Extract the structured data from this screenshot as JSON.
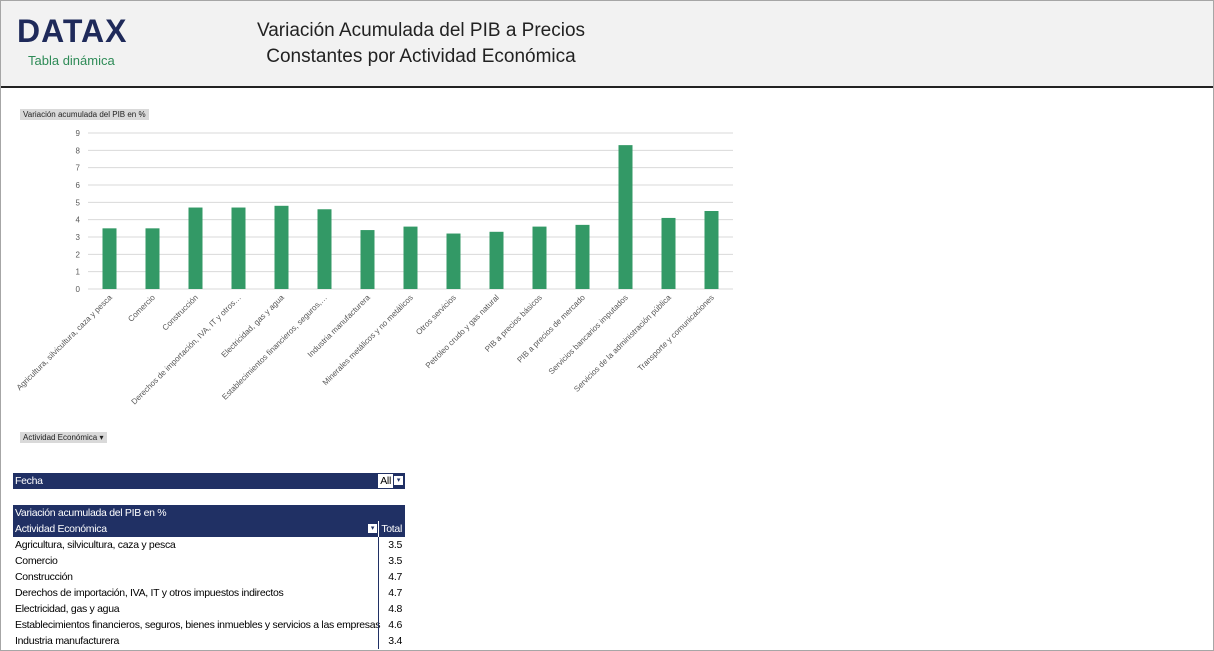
{
  "header": {
    "logo": "DATAX",
    "subtitle": "Tabla dinámica",
    "title_line1": "Variación Acumulada del PIB a Precios",
    "title_line2": "Constantes por Actividad Económica"
  },
  "chart_data": {
    "type": "bar",
    "value_button": "Variación acumulada del PIB en %",
    "axis_button": "Actividad Económica",
    "categories": [
      "Agricultura, silvicultura, caza y pesca",
      "Comercio",
      "Construcción",
      "Derechos de importación, IVA, IT y otros…",
      "Electricidad, gas y agua",
      "Establecimientos financieros, seguros,…",
      "Industria manufacturera",
      "Minerales metálicos y no metálicos",
      "Otros servicios",
      "Petróleo crudo y gas natural",
      "PIB a precios básicos",
      "PIB a precios de mercado",
      "Servicios bancarios imputados",
      "Servicios de la administración pública",
      "Transporte y comunicaciones"
    ],
    "values": [
      3.5,
      3.5,
      4.7,
      4.7,
      4.8,
      4.6,
      3.4,
      3.6,
      3.2,
      3.3,
      3.6,
      3.7,
      8.3,
      4.1,
      4.5
    ],
    "color": "#339966",
    "ylim": [
      0,
      9
    ],
    "yticks": [
      0,
      1,
      2,
      3,
      4,
      5,
      6,
      7,
      8,
      9
    ],
    "grid": true
  },
  "pivot": {
    "filter_label": "Fecha",
    "filter_value": "All",
    "measure": "Variación acumulada del PIB en %",
    "row_header": "Actividad Económica",
    "total_header": "Total",
    "rows": [
      [
        "Agricultura, silvicultura, caza y pesca",
        3.5
      ],
      [
        "Comercio",
        3.5
      ],
      [
        "Construcción",
        4.7
      ],
      [
        "Derechos de importación, IVA, IT y otros impuestos indirectos",
        4.7
      ],
      [
        "Electricidad, gas y agua",
        4.8
      ],
      [
        "Establecimientos financieros, seguros, bienes inmuebles y servicios a las empresas",
        4.6
      ],
      [
        "Industria manufacturera",
        3.4
      ]
    ]
  }
}
